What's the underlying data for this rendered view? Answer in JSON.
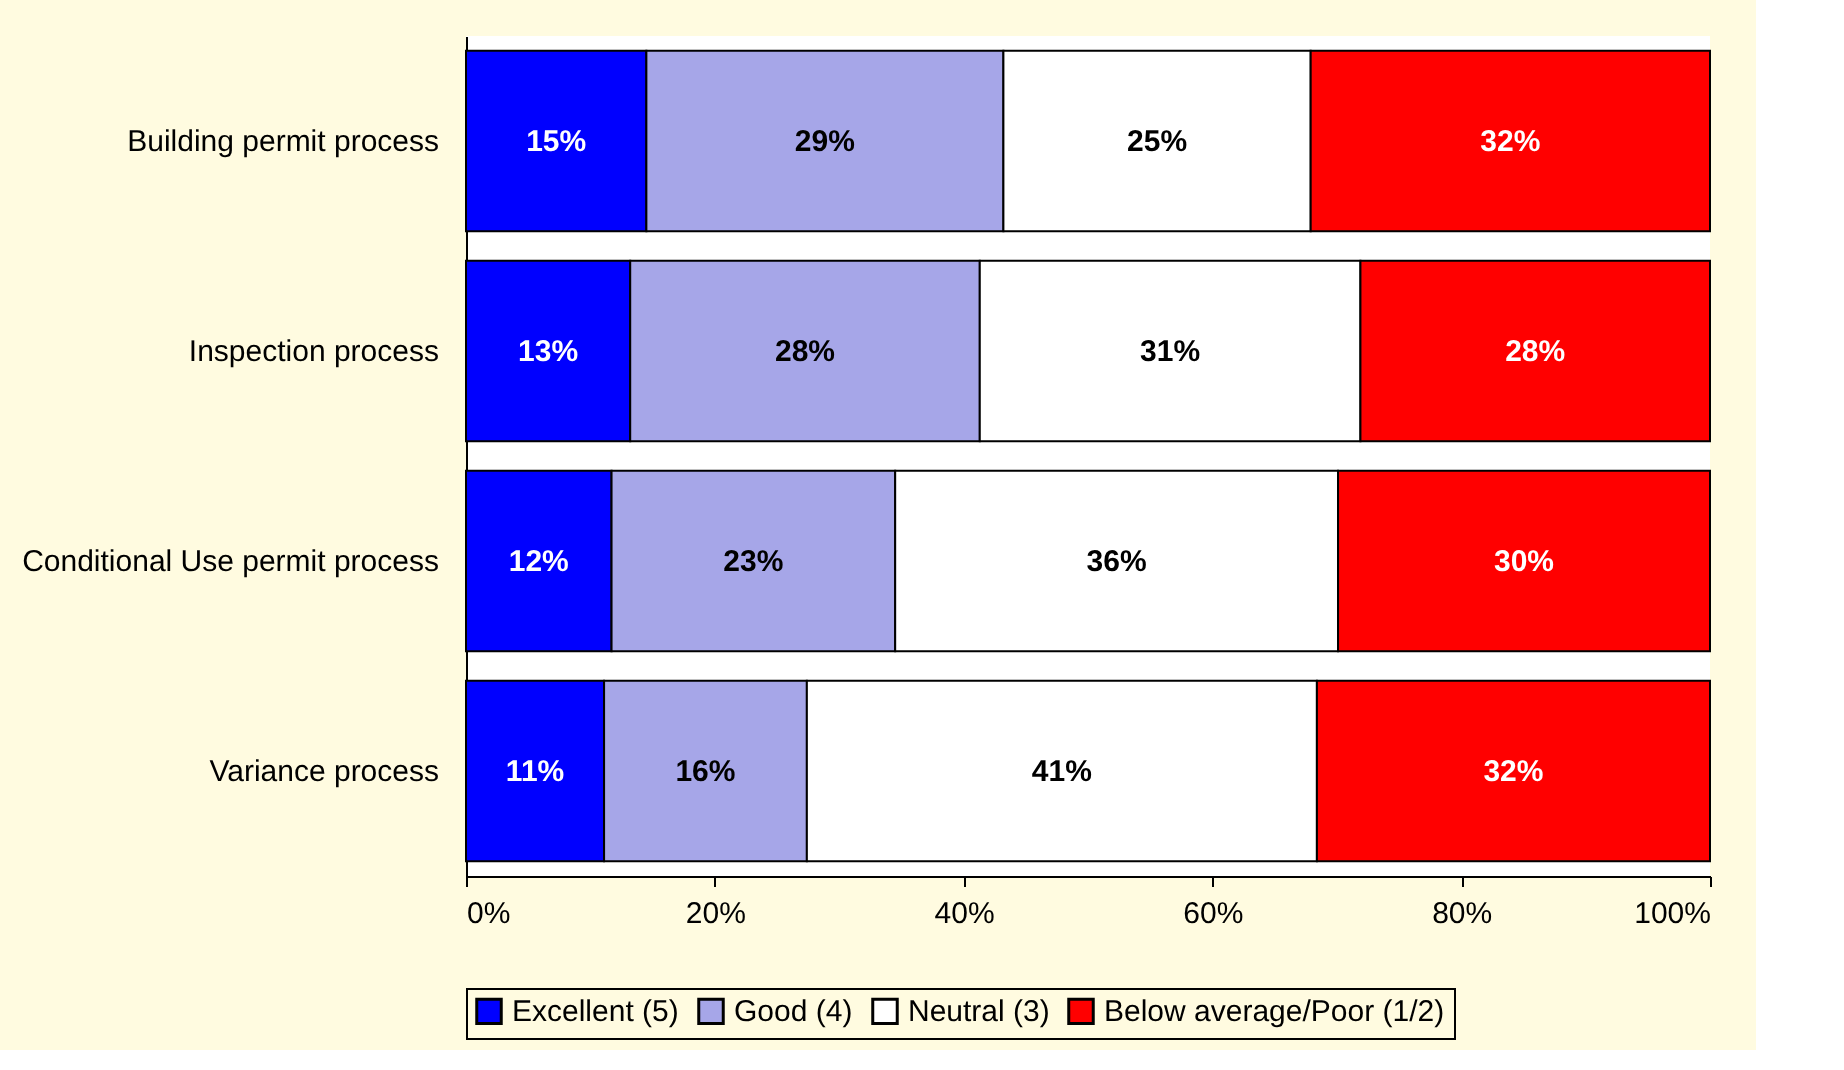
{
  "chart_data": {
    "type": "bar",
    "orientation": "horizontal",
    "stacked": true,
    "categories": [
      "Building permit process",
      "Inspection process",
      "Conditional Use permit process",
      "Variance process"
    ],
    "series": [
      {
        "name": "Excellent (5)",
        "color": "#0000ff",
        "values": [
          14.5,
          13.2,
          11.7,
          11.1
        ],
        "value_labels": [
          "15%",
          "13%",
          "12%",
          "11%"
        ]
      },
      {
        "name": "Good (4)",
        "color": "#a6a6e8",
        "values": [
          28.7,
          28.1,
          22.8,
          16.3
        ],
        "value_labels": [
          "29%",
          "28%",
          "23%",
          "16%"
        ]
      },
      {
        "name": "Neutral (3)",
        "color": "#ffffff",
        "values": [
          24.7,
          30.6,
          35.6,
          41.0
        ],
        "value_labels": [
          "25%",
          "31%",
          "36%",
          "41%"
        ]
      },
      {
        "name": "Below average/Poor (1/2)",
        "color": "#ff0000",
        "values": [
          32.1,
          28.1,
          29.9,
          31.6
        ],
        "value_labels": [
          "32%",
          "28%",
          "30%",
          "32%"
        ]
      }
    ],
    "xlim": [
      0,
      100
    ],
    "xticks": [
      {
        "value": 0,
        "label": "0%"
      },
      {
        "value": 20,
        "label": "20%"
      },
      {
        "value": 40,
        "label": "40%"
      },
      {
        "value": 60,
        "label": "60%"
      },
      {
        "value": 80,
        "label": "80%"
      },
      {
        "value": 100,
        "label": "100%"
      }
    ],
    "grid": false,
    "legend": "bottom"
  }
}
